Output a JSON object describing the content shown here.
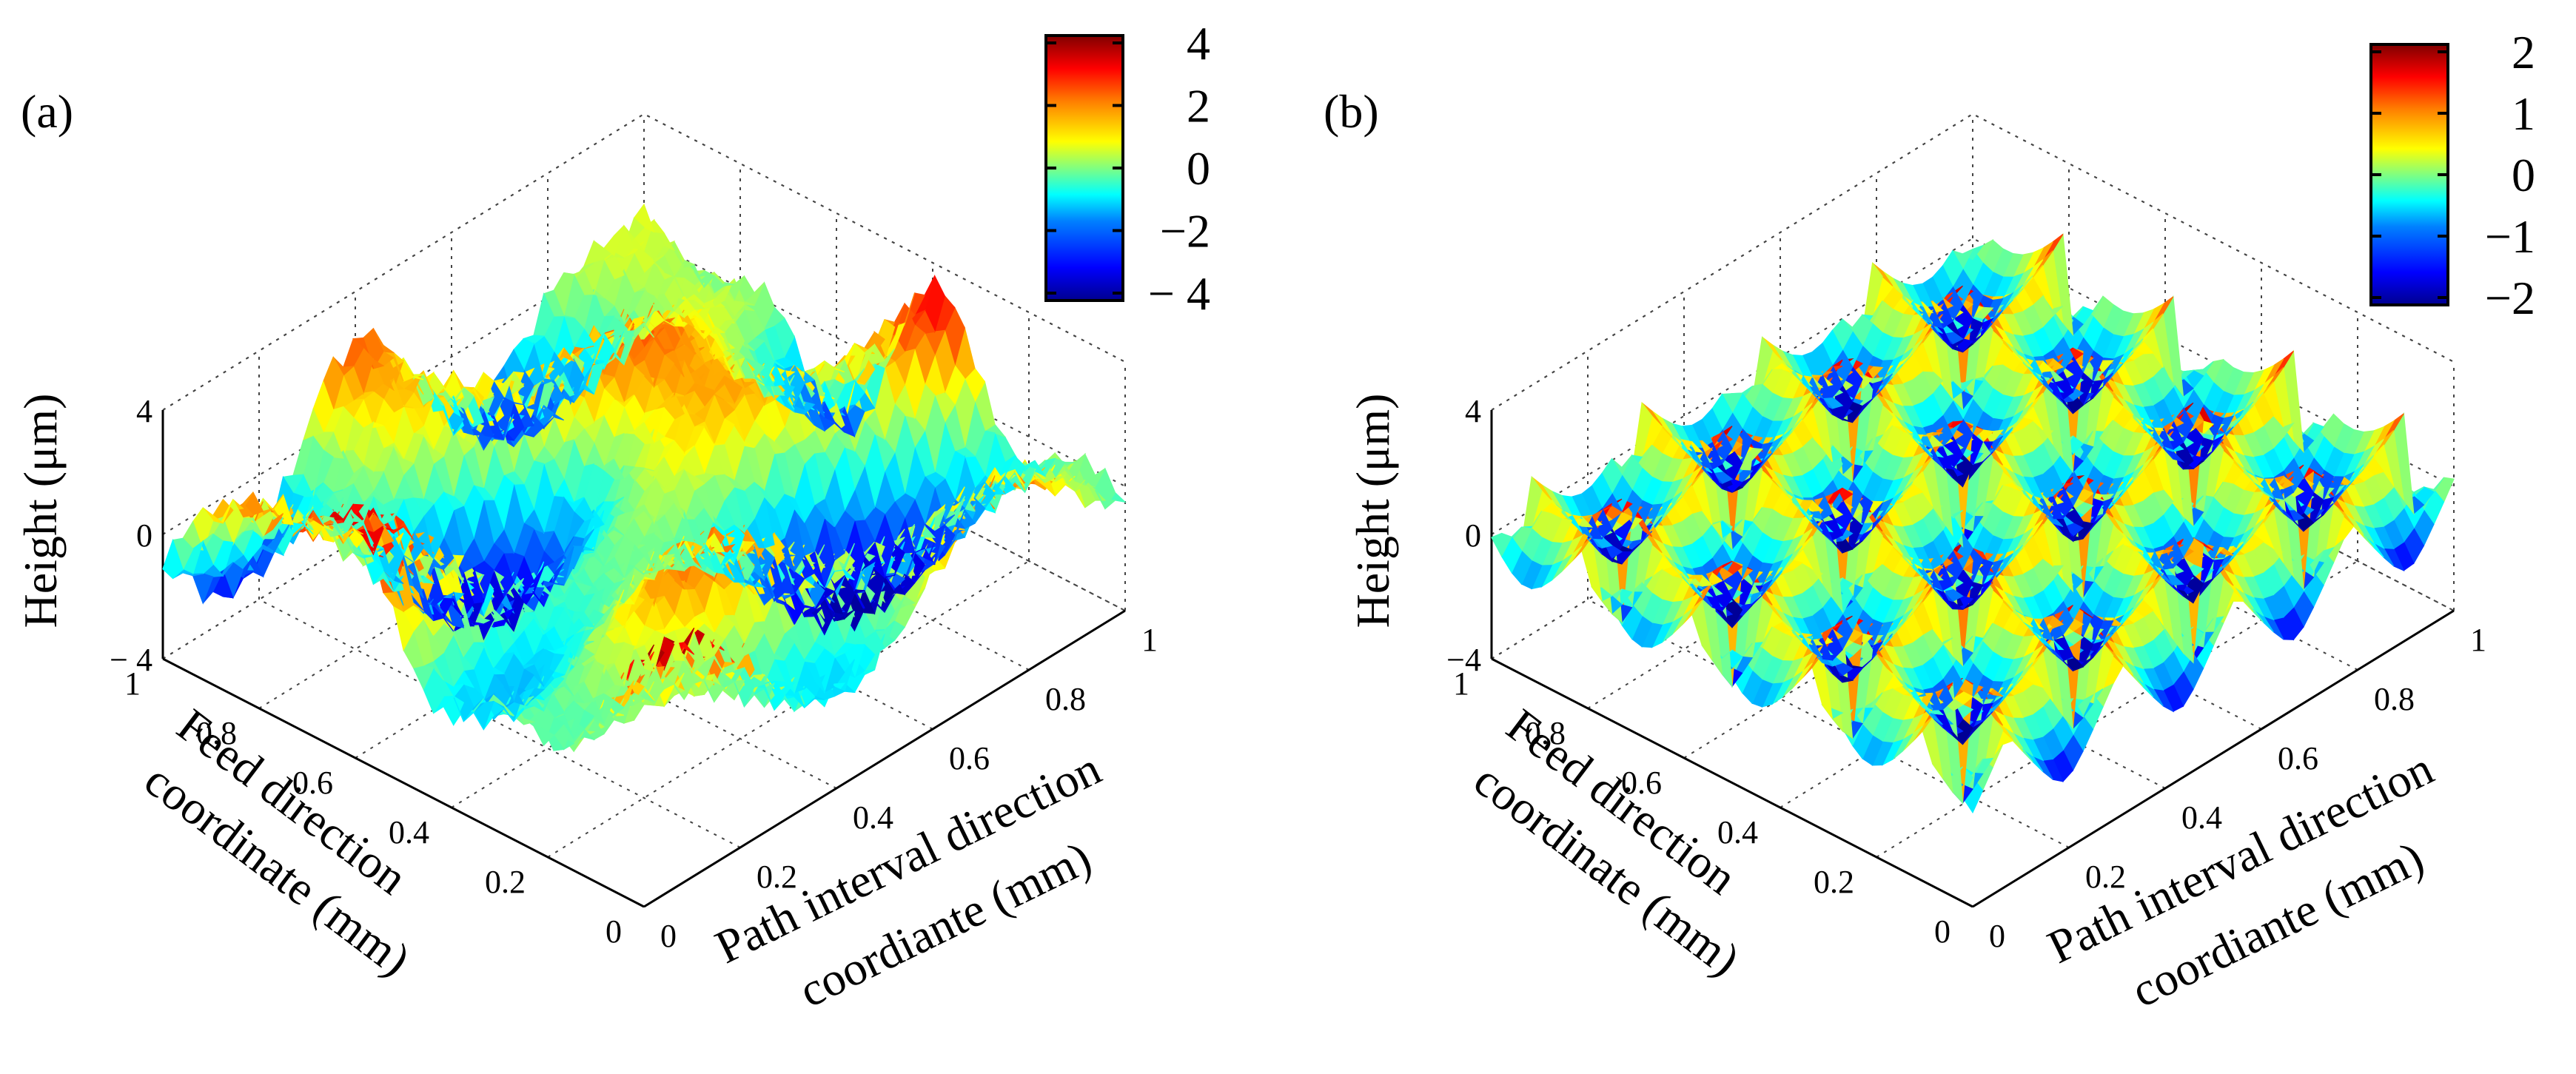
{
  "chart_data": [
    {
      "panel_label": "(a)",
      "type": "surface3d",
      "zlabel": "Height (μm)",
      "xlabel_line1": "Feed direction",
      "xlabel_line2": "coordinate (mm)",
      "ylabel_line1": "Path interval direction",
      "ylabel_line2": "coordiante (mm)",
      "x_ticks": [
        "1",
        "0.8",
        "0.6",
        "0.4",
        "0.2",
        "0"
      ],
      "y_ticks": [
        "0",
        "0.2",
        "0.4",
        "0.6",
        "0.8",
        "1"
      ],
      "z_ticks": [
        "4",
        "0",
        "− 4"
      ],
      "xlim": [
        0,
        1
      ],
      "ylim": [
        0,
        1
      ],
      "zlim": [
        -4,
        4
      ],
      "colorbar": {
        "ticks": [
          "4",
          "2",
          "0",
          "−2",
          "− 4"
        ],
        "range": [
          -4,
          4
        ]
      },
      "surface": "noisy",
      "colormap": [
        "#00008f",
        "#0000ff",
        "#0080ff",
        "#00ffff",
        "#80ff80",
        "#ffff00",
        "#ff8000",
        "#ff0000",
        "#800000"
      ]
    },
    {
      "panel_label": "(b)",
      "type": "surface3d",
      "zlabel": "Height (μm)",
      "xlabel_line1": "Feed direction",
      "xlabel_line2": "coordinate (mm)",
      "ylabel_line1": "Path interval direction",
      "ylabel_line2": "coordiante (mm)",
      "x_ticks": [
        "1",
        "0.8",
        "0.6",
        "0.4",
        "0.2",
        "0"
      ],
      "y_ticks": [
        "0",
        "0.2",
        "0.4",
        "0.6",
        "0.8",
        "1"
      ],
      "z_ticks": [
        "4",
        "0",
        "−4"
      ],
      "xlim": [
        0,
        1
      ],
      "ylim": [
        0,
        1
      ],
      "zlim": [
        -4,
        4
      ],
      "colorbar": {
        "ticks": [
          "2",
          "1",
          "0",
          "−1",
          "−2"
        ],
        "range": [
          -2,
          2
        ]
      },
      "surface": "smooth",
      "colormap": [
        "#00008f",
        "#0000ff",
        "#0080ff",
        "#00ffff",
        "#80ff80",
        "#ffff00",
        "#ff8000",
        "#ff0000",
        "#800000"
      ]
    }
  ]
}
